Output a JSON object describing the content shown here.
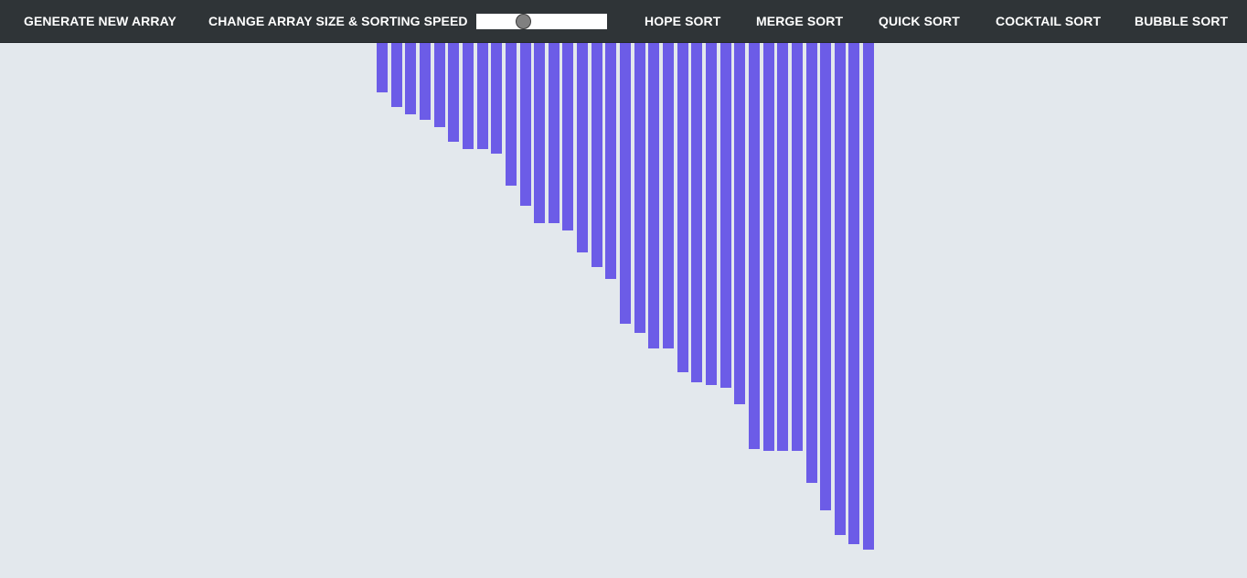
{
  "nav": {
    "generate_label": "GENERATE NEW ARRAY",
    "change_label": "CHANGE ARRAY SIZE & SORTING SPEED",
    "slider": {
      "value": 0.34,
      "min": 0,
      "max": 1
    },
    "algorithms": [
      {
        "label": "HOPE SORT"
      },
      {
        "label": "MERGE SORT"
      },
      {
        "label": "QUICK SORT"
      },
      {
        "label": "COCKTAIL SORT"
      },
      {
        "label": "BUBBLE SORT"
      }
    ]
  },
  "colors": {
    "bar": "#6c5ce7",
    "navbar": "#2f3437",
    "background": "#e3e8ed"
  },
  "chart_data": {
    "type": "bar",
    "values": [
      54,
      70,
      78,
      84,
      92,
      108,
      116,
      116,
      121,
      156,
      178,
      197,
      197,
      205,
      229,
      245,
      258,
      307,
      317,
      334,
      334,
      360,
      371,
      374,
      377,
      395,
      444,
      446,
      446,
      446,
      481,
      511,
      538,
      548,
      554
    ],
    "ylim": [
      0,
      585
    ]
  }
}
